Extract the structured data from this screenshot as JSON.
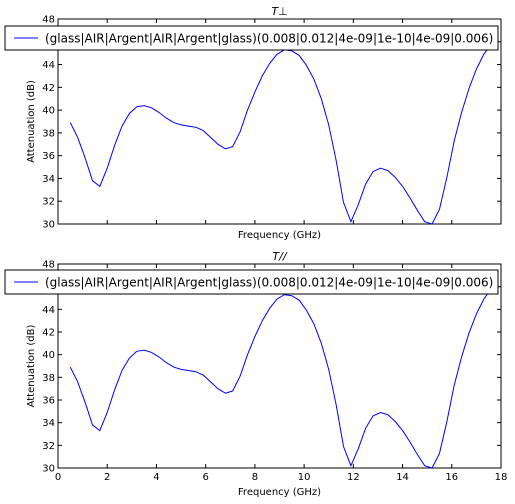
{
  "figure": {
    "background": "#ffffff",
    "line_color": "#0000ff",
    "frame_color": "#000000"
  },
  "chart_data": [
    {
      "type": "line",
      "title": "T⊥",
      "xlabel": "Frequency (GHz)",
      "ylabel": "Attenuation (dB)",
      "xlim": [
        0,
        18
      ],
      "ylim": [
        30,
        48
      ],
      "xticks": [],
      "yticks": [
        "30",
        "32",
        "34",
        "36",
        "38",
        "40",
        "42",
        "44",
        "46",
        "48"
      ],
      "legend_location": "top",
      "grid": false,
      "series": [
        {
          "name": "(glass|AIR|Argent|AIR|Argent|glass)(0.008|0.012|4e-09|1e-10|4e-09|0.006)",
          "x": [
            0.5,
            0.8,
            1.1,
            1.4,
            1.7,
            2.0,
            2.3,
            2.6,
            2.9,
            3.2,
            3.5,
            3.8,
            4.1,
            4.4,
            4.7,
            5.0,
            5.3,
            5.6,
            5.9,
            6.2,
            6.5,
            6.8,
            7.1,
            7.4,
            7.7,
            8.0,
            8.3,
            8.6,
            8.9,
            9.2,
            9.5,
            9.8,
            10.1,
            10.4,
            10.7,
            11.0,
            11.3,
            11.6,
            11.9,
            12.2,
            12.5,
            12.8,
            13.1,
            13.4,
            13.7,
            14.0,
            14.3,
            14.6,
            14.9,
            15.2,
            15.5,
            15.8,
            16.1,
            16.4,
            16.7,
            17.0,
            17.3,
            17.6
          ],
          "y": [
            38.9,
            37.6,
            35.8,
            33.8,
            33.3,
            34.9,
            36.9,
            38.6,
            39.7,
            40.3,
            40.4,
            40.2,
            39.8,
            39.3,
            38.9,
            38.7,
            38.6,
            38.5,
            38.2,
            37.6,
            37.0,
            36.6,
            36.8,
            38.1,
            40.0,
            41.6,
            43.0,
            44.1,
            44.9,
            45.3,
            45.2,
            44.8,
            43.9,
            42.7,
            41.0,
            38.7,
            35.6,
            31.9,
            30.2,
            31.7,
            33.5,
            34.6,
            34.9,
            34.7,
            34.1,
            33.3,
            32.3,
            31.2,
            30.2,
            30.0,
            31.3,
            34.1,
            37.3,
            39.8,
            41.9,
            43.6,
            44.9,
            45.8
          ]
        }
      ]
    },
    {
      "type": "line",
      "title": "T//",
      "xlabel": "Frequency (GHz)",
      "ylabel": "Attenuation (dB)",
      "xlim": [
        0,
        18
      ],
      "ylim": [
        30,
        48
      ],
      "xticks": [
        "0",
        "2",
        "4",
        "6",
        "8",
        "10",
        "12",
        "14",
        "16",
        "18"
      ],
      "yticks": [
        "30",
        "32",
        "34",
        "36",
        "38",
        "40",
        "42",
        "44",
        "46",
        "48"
      ],
      "legend_location": "top",
      "grid": false,
      "series": [
        {
          "name": "(glass|AIR|Argent|AIR|Argent|glass)(0.008|0.012|4e-09|1e-10|4e-09|0.006)",
          "x": [
            0.5,
            0.8,
            1.1,
            1.4,
            1.7,
            2.0,
            2.3,
            2.6,
            2.9,
            3.2,
            3.5,
            3.8,
            4.1,
            4.4,
            4.7,
            5.0,
            5.3,
            5.6,
            5.9,
            6.2,
            6.5,
            6.8,
            7.1,
            7.4,
            7.7,
            8.0,
            8.3,
            8.6,
            8.9,
            9.2,
            9.5,
            9.8,
            10.1,
            10.4,
            10.7,
            11.0,
            11.3,
            11.6,
            11.9,
            12.2,
            12.5,
            12.8,
            13.1,
            13.4,
            13.7,
            14.0,
            14.3,
            14.6,
            14.9,
            15.2,
            15.5,
            15.8,
            16.1,
            16.4,
            16.7,
            17.0,
            17.3,
            17.6
          ],
          "y": [
            38.9,
            37.6,
            35.8,
            33.8,
            33.3,
            34.9,
            36.9,
            38.6,
            39.7,
            40.3,
            40.4,
            40.2,
            39.8,
            39.3,
            38.9,
            38.7,
            38.6,
            38.5,
            38.2,
            37.6,
            37.0,
            36.6,
            36.8,
            38.1,
            40.0,
            41.6,
            43.0,
            44.1,
            44.9,
            45.3,
            45.2,
            44.8,
            43.9,
            42.7,
            41.0,
            38.7,
            35.6,
            31.9,
            30.2,
            31.7,
            33.5,
            34.6,
            34.9,
            34.7,
            34.1,
            33.3,
            32.3,
            31.2,
            30.2,
            30.0,
            31.3,
            34.1,
            37.3,
            39.8,
            41.9,
            43.6,
            44.9,
            45.8
          ]
        }
      ]
    }
  ]
}
